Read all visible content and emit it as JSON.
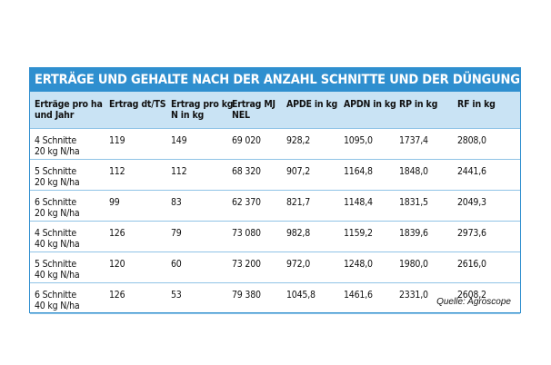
{
  "title": "ERTRÄGE UND GEHALTE NACH DER ANZAHL SCHNITTE UND DER DÜNGUNG",
  "columns": [
    [
      "Erträge pro ha",
      "und Jahr"
    ],
    [
      "Ertrag dt/TS",
      ""
    ],
    [
      "Ertrag pro kg",
      "N in kg"
    ],
    [
      "Ertrag MJ",
      "NEL"
    ],
    [
      "APDE in kg",
      ""
    ],
    [
      "APDN in kg",
      ""
    ],
    [
      "RP in kg",
      ""
    ],
    [
      "RF in kg",
      ""
    ]
  ],
  "rows": [
    [
      [
        "4 Schnitte",
        "20 kg N/ha"
      ],
      "119",
      "149",
      "69 020",
      "928,2",
      "1095,0",
      "1737,4",
      "2808,0"
    ],
    [
      [
        "5 Schnitte",
        "20 kg N/ha"
      ],
      "112",
      "112",
      "68 320",
      "907,2",
      "1164,8",
      "1848,0",
      "2441,6"
    ],
    [
      [
        "6 Schnitte",
        "20 kg N/ha"
      ],
      "99",
      "83",
      "62 370",
      "821,7",
      "1148,4",
      "1831,5",
      "2049,3"
    ],
    [
      [
        "4 Schnitte",
        "40 kg N/ha"
      ],
      "126",
      "79",
      "73 080",
      "982,8",
      "1159,2",
      "1839,6",
      "2973,6"
    ],
    [
      [
        "5 Schnitte",
        "40 kg N/ha"
      ],
      "120",
      "60",
      "73 200",
      "972,0",
      "1248,0",
      "1980,0",
      "2616,0"
    ],
    [
      [
        "6 Schnitte",
        "40 kg N/ha"
      ],
      "126",
      "53",
      "79 380",
      "1045,8",
      "1461,6",
      "2331,0",
      "2608,2"
    ]
  ],
  "source": "Quelle: Agroscope",
  "colors": {
    "accent": "#2f8fcf",
    "header_bg": "#c9e3f4",
    "rule": "#8fc3e6"
  }
}
